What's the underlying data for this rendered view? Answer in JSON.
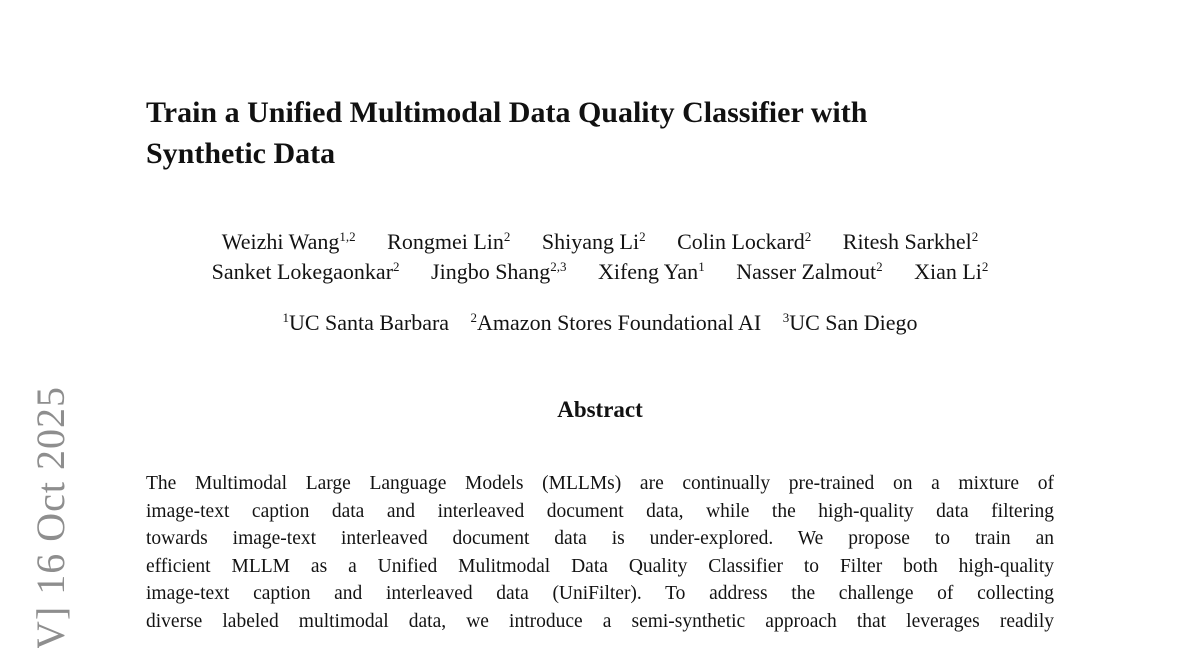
{
  "stamp": {
    "text": "V] 16 Oct 2025",
    "color": "#8e8e8e"
  },
  "title": {
    "lines": [
      "Train a Unified Multimodal Data Quality Classifier with",
      "Synthetic Data"
    ]
  },
  "authors": {
    "line1": [
      {
        "name": "Weizhi Wang",
        "sup": "1,2"
      },
      {
        "name": "Rongmei Lin",
        "sup": "2"
      },
      {
        "name": "Shiyang Li",
        "sup": "2"
      },
      {
        "name": "Colin Lockard",
        "sup": "2"
      },
      {
        "name": "Ritesh Sarkhel",
        "sup": "2"
      }
    ],
    "line2": [
      {
        "name": "Sanket Lokegaonkar",
        "sup": "2"
      },
      {
        "name": "Jingbo Shang",
        "sup": "2,3"
      },
      {
        "name": "Xifeng Yan",
        "sup": "1"
      },
      {
        "name": "Nasser Zalmout",
        "sup": "2"
      },
      {
        "name": "Xian Li",
        "sup": "2"
      }
    ]
  },
  "affiliations": [
    {
      "sup": "1",
      "name": "UC Santa Barbara"
    },
    {
      "sup": "2",
      "name": "Amazon Stores Foundational AI"
    },
    {
      "sup": "3",
      "name": "UC San Diego"
    }
  ],
  "abstract": {
    "heading": "Abstract",
    "lines": [
      "The Multimodal Large Language Models (MLLMs) are continually pre-trained on a mixture of",
      "image-text caption data and interleaved document data, while the high-quality data filtering",
      "towards image-text interleaved document data is under-explored. We propose to train an",
      "efficient MLLM as a Unified Mulitmodal Data Quality Classifier to Filter both high-quality",
      "image-text caption and interleaved data (UniFilter). To address the challenge of collecting",
      "diverse labeled multimodal data, we introduce a semi-synthetic approach that leverages readily"
    ]
  },
  "colors": {
    "background": "#ffffff",
    "text": "#131313"
  }
}
